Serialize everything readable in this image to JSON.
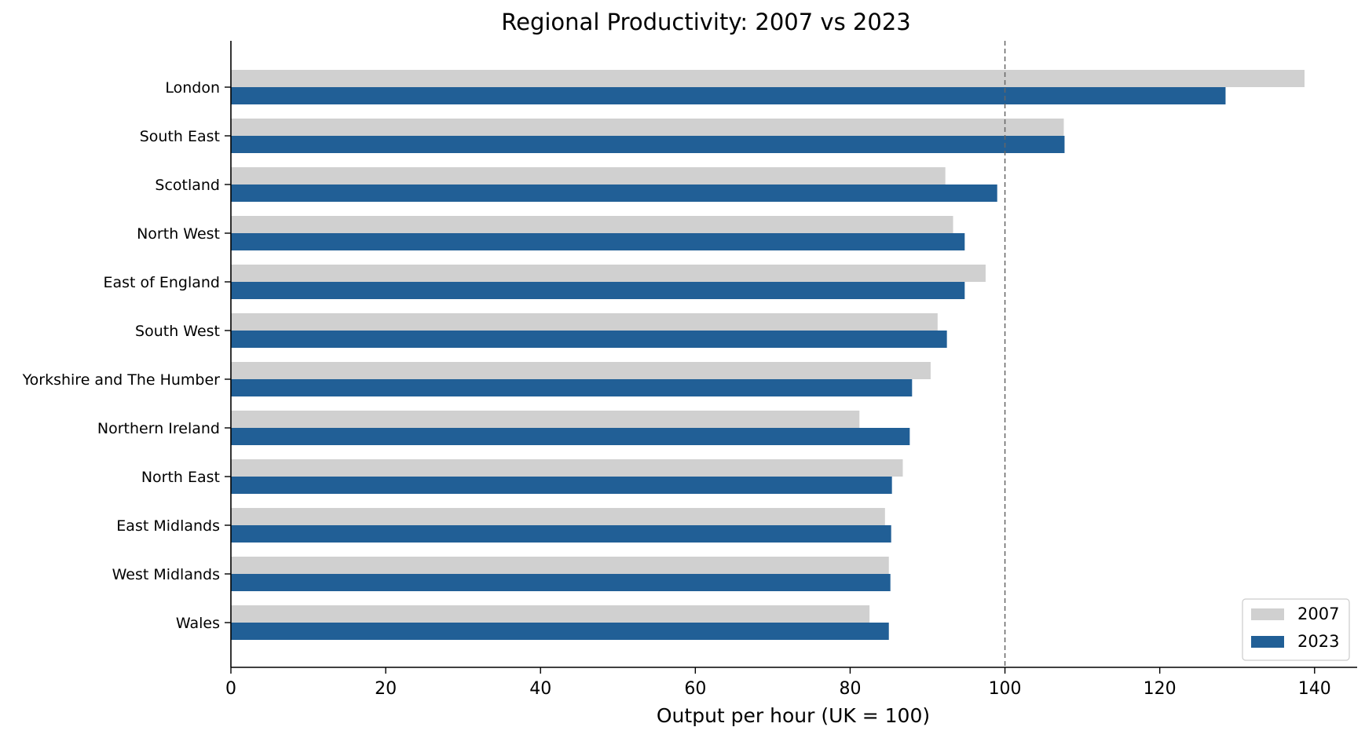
{
  "chart_data": {
    "type": "bar",
    "orientation": "horizontal",
    "title": "Regional Productivity: 2007 vs 2023",
    "xlabel": "Output per hour (UK = 100)",
    "ylabel": "",
    "xlim": [
      0,
      145.5
    ],
    "xticks": [
      0,
      20,
      40,
      60,
      80,
      100,
      120,
      140
    ],
    "reference_line": {
      "x": 100,
      "style": "dashed",
      "color": "#666666"
    },
    "legend_position": "bottom-right",
    "categories": [
      "London",
      "South East",
      "Scotland",
      "North West",
      "East of England",
      "South West",
      "Yorkshire and The Humber",
      "Northern Ireland",
      "North East",
      "East Midlands",
      "West Midlands",
      "Wales"
    ],
    "series": [
      {
        "name": "2007",
        "color": "#d0d0d0",
        "values": [
          138.7,
          107.6,
          92.3,
          93.3,
          97.5,
          91.3,
          90.4,
          81.2,
          86.8,
          84.5,
          85.0,
          82.5
        ]
      },
      {
        "name": "2023",
        "color": "#215f96",
        "values": [
          128.5,
          107.7,
          99.0,
          94.8,
          94.8,
          92.5,
          88.0,
          87.7,
          85.4,
          85.3,
          85.2,
          85.0
        ]
      }
    ]
  }
}
